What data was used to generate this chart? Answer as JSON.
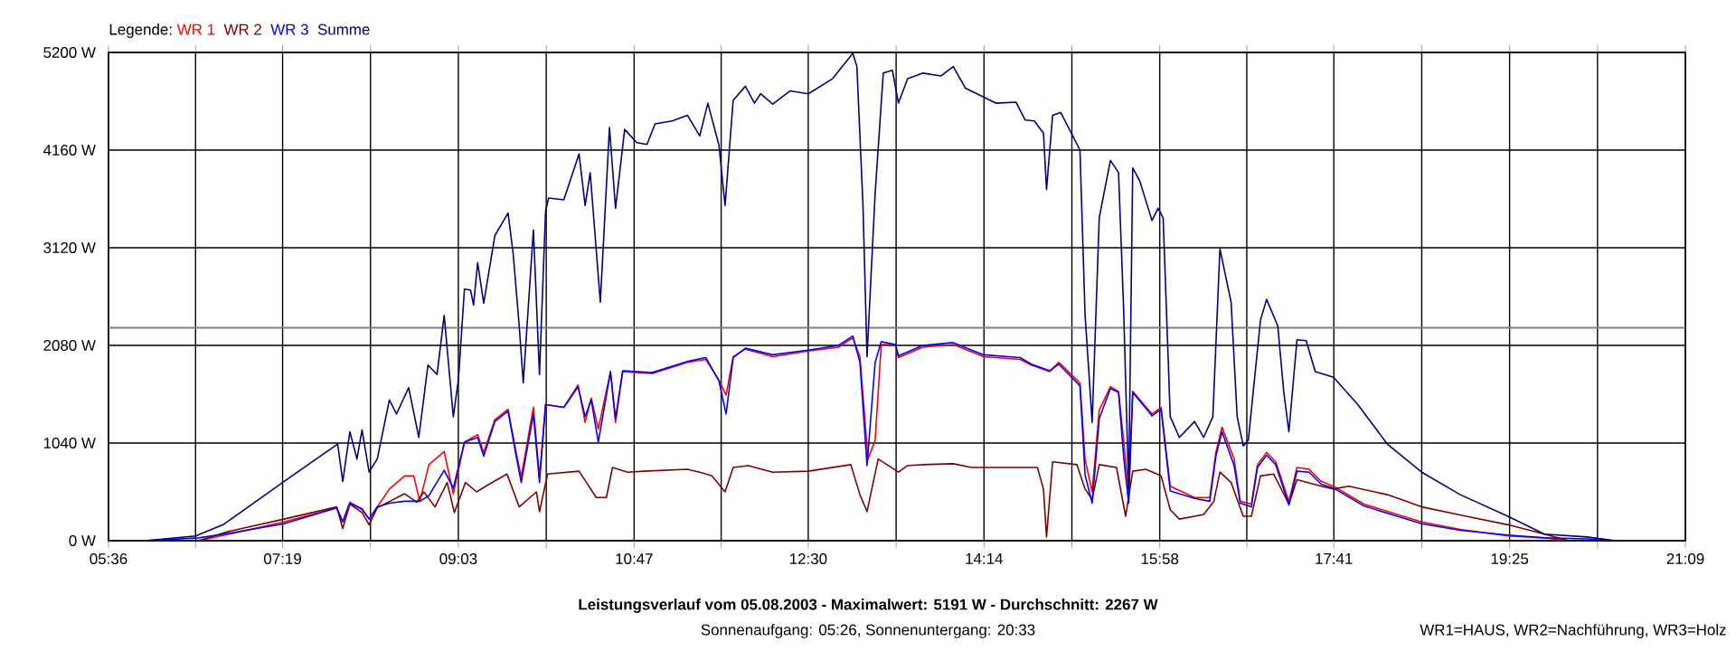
{
  "chart_data": {
    "type": "line",
    "title": "Leistungsverlauf vom 05.08.2003 - Maximalwert: 5191 W - Durchschnitt: 2267 W",
    "subtitle": "Sonnenaufgang: 05:26, Sonnenuntergang: 20:33",
    "annotations": [
      "WR1=HAUS, WR2=Nachführung, WR3=Holz"
    ],
    "legend_title": "Legende:",
    "legend": "top left",
    "grid": true,
    "xlim": [
      5.6,
      21.15
    ],
    "ylim": [
      0,
      5200
    ],
    "xticks": [
      {
        "value": 5.6,
        "label": "05:36"
      },
      {
        "value": 6.4583,
        "label": null
      },
      {
        "value": 7.3167,
        "label": "07:19"
      },
      {
        "value": 8.1833,
        "label": null
      },
      {
        "value": 9.05,
        "label": "09:03"
      },
      {
        "value": 9.9167,
        "label": null
      },
      {
        "value": 10.7833,
        "label": "10:47"
      },
      {
        "value": 11.6417,
        "label": null
      },
      {
        "value": 12.5,
        "label": "12:30"
      },
      {
        "value": 13.3667,
        "label": null
      },
      {
        "value": 14.2333,
        "label": "14:14"
      },
      {
        "value": 15.1,
        "label": null
      },
      {
        "value": 15.9667,
        "label": "15:58"
      },
      {
        "value": 16.825,
        "label": null
      },
      {
        "value": 17.6833,
        "label": "17:41"
      },
      {
        "value": 18.55,
        "label": null
      },
      {
        "value": 19.4167,
        "label": "19:25"
      },
      {
        "value": 20.2833,
        "label": null
      },
      {
        "value": 21.15,
        "label": "21:09"
      }
    ],
    "yticks": [
      {
        "value": 0,
        "label": "0 W"
      },
      {
        "value": 1040,
        "label": "1040 W"
      },
      {
        "value": 2080,
        "label": "2080 W"
      },
      {
        "value": 3120,
        "label": "3120 W"
      },
      {
        "value": 4160,
        "label": "4160 W"
      },
      {
        "value": 5200,
        "label": "5200 W"
      }
    ],
    "ref_lines": [
      {
        "axis": "y",
        "value": 2267,
        "color": "#808080"
      }
    ],
    "series": [
      {
        "name": "WR 1",
        "color": "#ff0000",
        "x": [
          6.49,
          6.79,
          7.33,
          7.85,
          7.91,
          7.98,
          8.1,
          8.17,
          8.25,
          8.37,
          8.52,
          8.61,
          8.67,
          8.76,
          8.91,
          9.0,
          9.11,
          9.24,
          9.3,
          9.41,
          9.54,
          9.62,
          9.67,
          9.79,
          9.85,
          9.91,
          10.09,
          10.23,
          10.3,
          10.36,
          10.43,
          10.55,
          10.6,
          10.67,
          10.96,
          11.31,
          11.49,
          11.62,
          11.69,
          11.76,
          11.88,
          12.15,
          12.5,
          12.8,
          12.94,
          13.01,
          13.09,
          13.16,
          13.22,
          13.36,
          13.39,
          13.63,
          13.93,
          14.23,
          14.59,
          14.7,
          14.88,
          14.97,
          15.18,
          15.23,
          15.3,
          15.37,
          15.48,
          15.56,
          15.61,
          15.66,
          15.7,
          15.89,
          15.98,
          16.07,
          16.31,
          16.46,
          16.52,
          16.58,
          16.7,
          16.76,
          16.87,
          16.93,
          17.02,
          17.11,
          17.24,
          17.32,
          17.44,
          17.56,
          17.68,
          17.98,
          18.55,
          18.93,
          19.4,
          19.76,
          20.0
        ],
        "values": [
          0,
          70,
          200,
          350,
          200,
          410,
          330,
          230,
          360,
          550,
          690,
          690,
          420,
          810,
          950,
          500,
          1050,
          1130,
          940,
          1290,
          1400,
          940,
          680,
          1420,
          680,
          1450,
          1420,
          1660,
          1260,
          1520,
          1190,
          1800,
          1260,
          1800,
          1780,
          1900,
          1930,
          1710,
          1550,
          1960,
          2040,
          1960,
          2020,
          2060,
          2160,
          1960,
          870,
          1070,
          2090,
          2090,
          1950,
          2060,
          2090,
          1960,
          1930,
          1870,
          1800,
          1900,
          1680,
          870,
          520,
          1390,
          1640,
          1590,
          1070,
          520,
          1590,
          1350,
          1420,
          580,
          460,
          460,
          940,
          1210,
          870,
          420,
          390,
          810,
          940,
          840,
          420,
          780,
          760,
          630,
          580,
          390,
          200,
          120,
          50,
          30,
          0
        ]
      },
      {
        "name": "WR 2",
        "color": "#800000",
        "x": [
          6.49,
          6.79,
          7.33,
          7.85,
          7.91,
          7.98,
          8.1,
          8.17,
          8.25,
          8.52,
          8.64,
          8.71,
          8.82,
          8.94,
          9.01,
          9.12,
          9.23,
          9.32,
          9.53,
          9.65,
          9.82,
          9.85,
          9.93,
          10.24,
          10.41,
          10.51,
          10.57,
          10.72,
          10.88,
          11.31,
          11.43,
          11.55,
          11.68,
          11.76,
          11.91,
          12.15,
          12.5,
          12.92,
          13.01,
          13.08,
          13.19,
          13.39,
          13.48,
          13.63,
          13.93,
          14.11,
          14.76,
          14.82,
          14.85,
          14.91,
          15.15,
          15.23,
          15.3,
          15.37,
          15.54,
          15.63,
          15.7,
          15.83,
          15.98,
          16.07,
          16.16,
          16.4,
          16.5,
          16.56,
          16.67,
          16.79,
          16.87,
          16.96,
          17.09,
          17.24,
          17.32,
          17.56,
          17.68,
          17.83,
          18.21,
          18.55,
          18.99,
          19.4,
          19.76,
          20.0
        ],
        "values": [
          0,
          100,
          230,
          360,
          130,
          390,
          300,
          170,
          350,
          500,
          410,
          520,
          360,
          620,
          300,
          620,
          520,
          580,
          710,
          360,
          520,
          310,
          710,
          740,
          460,
          460,
          780,
          730,
          740,
          760,
          730,
          690,
          520,
          780,
          800,
          730,
          740,
          810,
          490,
          310,
          870,
          730,
          800,
          810,
          820,
          780,
          780,
          550,
          40,
          840,
          810,
          550,
          440,
          810,
          780,
          260,
          740,
          760,
          690,
          330,
          230,
          280,
          420,
          730,
          620,
          260,
          260,
          690,
          710,
          390,
          650,
          580,
          550,
          580,
          490,
          360,
          260,
          170,
          70,
          0
        ]
      },
      {
        "name": "WR 3",
        "color": "#0000ff",
        "x": [
          5.96,
          6.49,
          6.79,
          7.33,
          7.85,
          7.91,
          7.98,
          8.1,
          8.17,
          8.25,
          8.37,
          8.52,
          8.61,
          8.67,
          8.76,
          8.91,
          9.0,
          9.11,
          9.24,
          9.3,
          9.41,
          9.54,
          9.62,
          9.67,
          9.79,
          9.85,
          9.91,
          10.09,
          10.23,
          10.3,
          10.36,
          10.43,
          10.55,
          10.6,
          10.67,
          10.96,
          11.31,
          11.49,
          11.62,
          11.69,
          11.76,
          11.88,
          12.15,
          12.5,
          12.8,
          12.94,
          13.01,
          13.08,
          13.16,
          13.22,
          13.36,
          13.39,
          13.63,
          13.93,
          14.23,
          14.59,
          14.7,
          14.88,
          14.97,
          15.18,
          15.23,
          15.3,
          15.37,
          15.48,
          15.56,
          15.61,
          15.66,
          15.7,
          15.89,
          15.98,
          16.07,
          16.31,
          16.46,
          16.52,
          16.58,
          16.7,
          16.76,
          16.87,
          16.93,
          17.02,
          17.11,
          17.24,
          17.32,
          17.44,
          17.56,
          17.68,
          17.98,
          18.55,
          18.93,
          19.4,
          19.76,
          20.18,
          20.46
        ],
        "values": [
          0,
          30,
          80,
          180,
          350,
          200,
          400,
          340,
          230,
          360,
          400,
          420,
          420,
          420,
          480,
          750,
          560,
          1050,
          1100,
          900,
          1270,
          1380,
          900,
          620,
          1350,
          620,
          1450,
          1420,
          1640,
          1320,
          1500,
          1050,
          1800,
          1300,
          1810,
          1790,
          1910,
          1950,
          1700,
          1350,
          1950,
          2050,
          1980,
          2030,
          2080,
          2180,
          1900,
          800,
          1900,
          2120,
          2090,
          1970,
          2080,
          2110,
          1980,
          1950,
          1880,
          1810,
          1880,
          1650,
          700,
          400,
          1300,
          1620,
          1580,
          900,
          400,
          1580,
          1330,
          1400,
          530,
          450,
          420,
          900,
          1160,
          800,
          400,
          360,
          780,
          910,
          810,
          380,
          740,
          730,
          600,
          560,
          370,
          180,
          110,
          60,
          30,
          20,
          0
        ]
      },
      {
        "name": "Summe",
        "color": "#000080",
        "x": [
          5.96,
          6.46,
          6.73,
          7.33,
          7.86,
          7.91,
          7.98,
          8.05,
          8.1,
          8.17,
          8.25,
          8.37,
          8.44,
          8.56,
          8.66,
          8.75,
          8.84,
          8.91,
          9.0,
          9.05,
          9.11,
          9.17,
          9.2,
          9.24,
          9.3,
          9.41,
          9.54,
          9.59,
          9.65,
          9.69,
          9.79,
          9.85,
          9.91,
          9.94,
          10.09,
          10.24,
          10.3,
          10.35,
          10.45,
          10.54,
          10.6,
          10.69,
          10.81,
          10.91,
          10.99,
          11.16,
          11.31,
          11.43,
          11.51,
          11.62,
          11.68,
          11.76,
          11.88,
          11.97,
          12.03,
          12.15,
          12.32,
          12.5,
          12.74,
          12.94,
          12.98,
          13.04,
          13.08,
          13.16,
          13.24,
          13.33,
          13.39,
          13.48,
          13.63,
          13.81,
          13.93,
          14.05,
          14.35,
          14.55,
          14.64,
          14.73,
          14.82,
          14.85,
          14.91,
          14.99,
          15.18,
          15.23,
          15.3,
          15.37,
          15.48,
          15.56,
          15.61,
          15.66,
          15.7,
          15.77,
          15.89,
          15.95,
          16.0,
          16.07,
          16.16,
          16.31,
          16.4,
          16.49,
          16.56,
          16.67,
          16.73,
          16.79,
          16.84,
          16.96,
          17.02,
          17.13,
          17.19,
          17.24,
          17.32,
          17.41,
          17.5,
          17.68,
          17.92,
          18.21,
          18.55,
          18.93,
          19.4,
          19.76,
          20.18,
          20.46
        ],
        "values": [
          0,
          50,
          170,
          630,
          1030,
          630,
          1160,
          870,
          1180,
          730,
          870,
          1500,
          1350,
          1630,
          1100,
          1870,
          1770,
          2400,
          1320,
          1710,
          2680,
          2670,
          2510,
          2960,
          2530,
          3250,
          3490,
          3060,
          2290,
          1680,
          3310,
          1770,
          3510,
          3650,
          3630,
          4120,
          3570,
          3920,
          2540,
          4400,
          3540,
          4380,
          4240,
          4220,
          4440,
          4470,
          4530,
          4310,
          4660,
          4210,
          3570,
          4690,
          4840,
          4660,
          4760,
          4650,
          4790,
          4760,
          4920,
          5191,
          5050,
          3570,
          1960,
          3700,
          4980,
          5010,
          4660,
          4920,
          4980,
          4950,
          5050,
          4820,
          4660,
          4670,
          4480,
          4470,
          4340,
          3740,
          4530,
          4560,
          4160,
          2410,
          1260,
          3440,
          4050,
          3920,
          2480,
          550,
          3970,
          3830,
          3410,
          3540,
          3440,
          1320,
          1100,
          1270,
          1100,
          1320,
          3110,
          2540,
          1320,
          1010,
          1070,
          2350,
          2570,
          2290,
          1580,
          1160,
          2140,
          2130,
          1800,
          1740,
          1450,
          1030,
          730,
          490,
          260,
          70,
          40,
          0
        ]
      }
    ]
  }
}
